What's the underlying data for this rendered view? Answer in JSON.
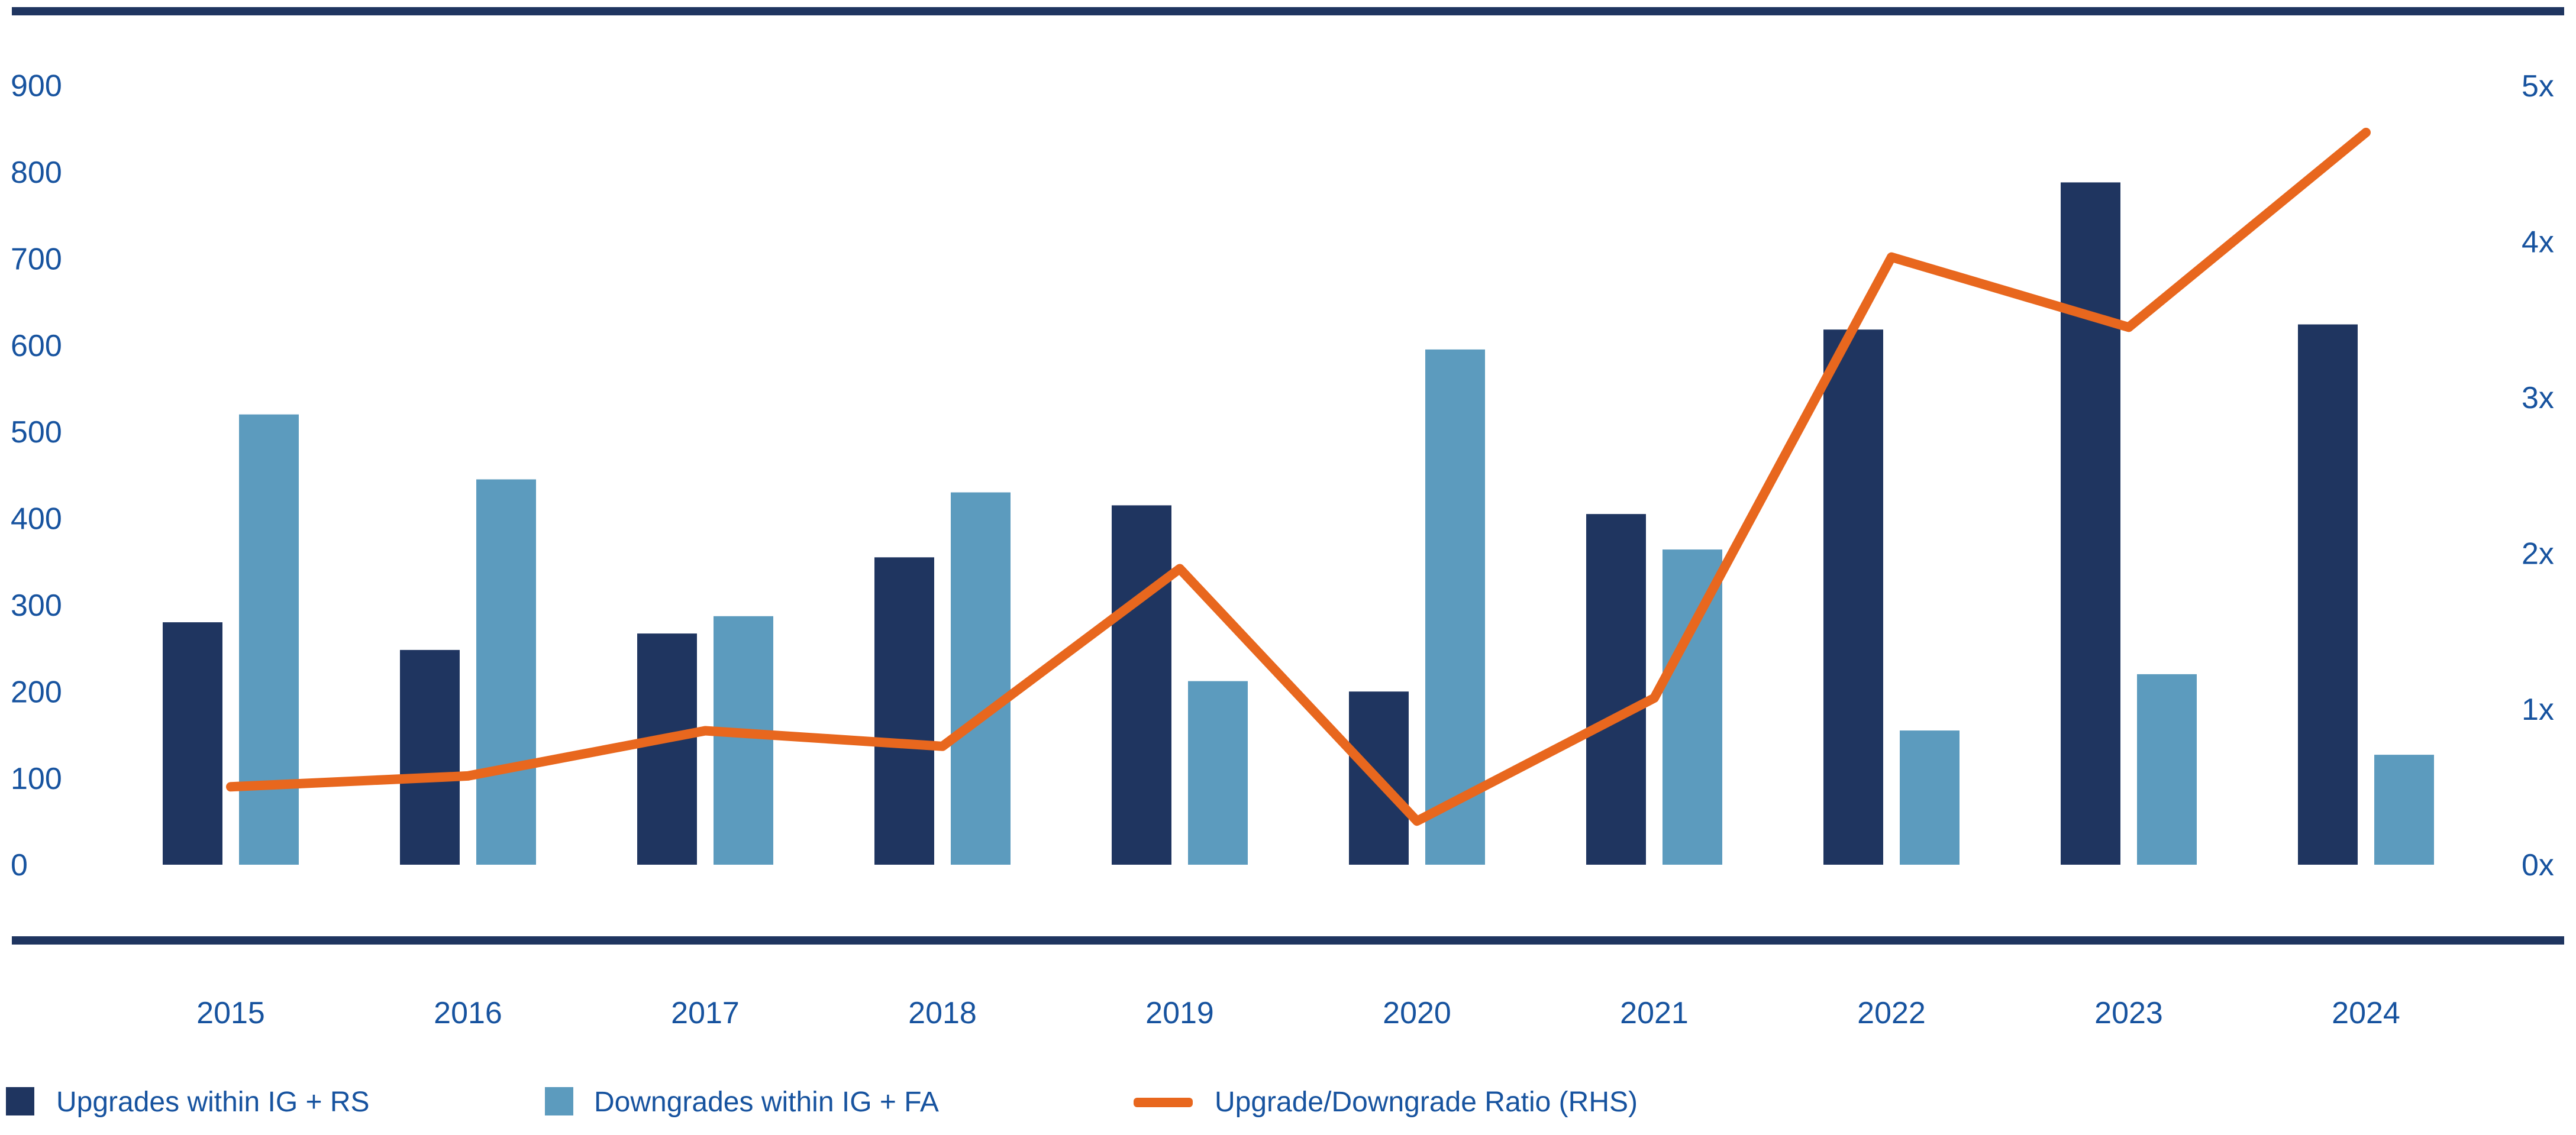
{
  "chart_data": {
    "type": "combo-bar-line",
    "title": "",
    "categories": [
      "2015",
      "2016",
      "2017",
      "2018",
      "2019",
      "2020",
      "2021",
      "2022",
      "2023",
      "2024"
    ],
    "series": [
      {
        "name": "Upgrades within IG + RS",
        "type": "bar",
        "axis": "left",
        "color": "#1F3560",
        "values": [
          280,
          248,
          267,
          355,
          415,
          200,
          405,
          618,
          788,
          624
        ]
      },
      {
        "name": "Downgrades within IG + FA",
        "type": "bar",
        "axis": "left",
        "color": "#5C9BBE",
        "values": [
          520,
          445,
          287,
          430,
          212,
          595,
          364,
          155,
          220,
          127
        ]
      },
      {
        "name": "Upgrade/Downgrade Ratio (RHS)",
        "type": "line",
        "axis": "right",
        "color": "#E8671E",
        "values": [
          0.5,
          0.57,
          0.86,
          0.76,
          1.9,
          0.28,
          1.07,
          3.9,
          3.45,
          4.7
        ]
      }
    ],
    "left_axis": {
      "ticks": [
        0,
        100,
        200,
        300,
        400,
        500,
        600,
        700,
        800,
        900
      ],
      "range": [
        0,
        900
      ]
    },
    "right_axis": {
      "ticks": [
        "0x",
        "1x",
        "2x",
        "3x",
        "4x",
        "5x"
      ],
      "range": [
        0,
        5
      ]
    },
    "grid": false,
    "legend_position": "bottom-left",
    "text_color": "#17539F",
    "border_color": "#1F3560",
    "background": "#FFFFFF"
  }
}
